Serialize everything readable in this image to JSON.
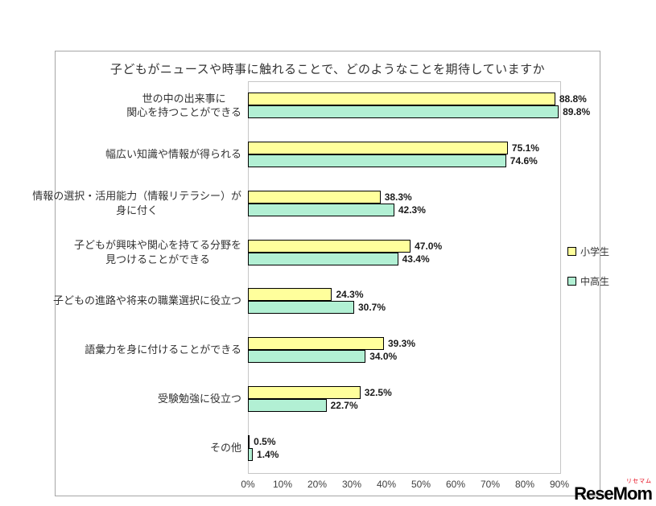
{
  "title": "子どもがニュースや時事に触れることで、どのようなことを期待していますか",
  "legend": {
    "items": [
      {
        "label": "小学生",
        "color": "#FFFF9C"
      },
      {
        "label": "中高生",
        "color": "#B2F0D4"
      }
    ]
  },
  "watermark": {
    "text": "ReseMom",
    "ruby": "リセマム"
  },
  "chart_data": {
    "type": "bar",
    "orientation": "horizontal",
    "title": "子どもがニュースや時事に触れることで、どのようなことを期待していますか",
    "categories": [
      "世の中の出来事に\n関心を持つことができる",
      "幅広い知識や情報が得られる",
      "情報の選択・活用能力（情報リテラシー）が\n身に付く",
      "子どもが興味や関心を持てる分野を\n見つけることができる",
      "子どもの進路や将来の職業選択に役立つ",
      "語彙力を身に付けることができる",
      "受験勉強に役立つ",
      "その他"
    ],
    "series": [
      {
        "name": "小学生",
        "key": "elementary",
        "color": "#FFFF9C",
        "values": [
          88.8,
          75.1,
          38.3,
          47.0,
          24.3,
          39.3,
          32.5,
          0.5
        ]
      },
      {
        "name": "中高生",
        "key": "secondary",
        "color": "#B2F0D4",
        "values": [
          89.8,
          74.6,
          42.3,
          43.4,
          30.7,
          34.0,
          22.7,
          1.4
        ]
      }
    ],
    "x_ticks": [
      "0%",
      "10%",
      "20%",
      "30%",
      "40%",
      "50%",
      "60%",
      "70%",
      "80%",
      "90%"
    ],
    "xlim": [
      0,
      90
    ],
    "grid": false,
    "data_labels": true,
    "legend_position": "right"
  }
}
